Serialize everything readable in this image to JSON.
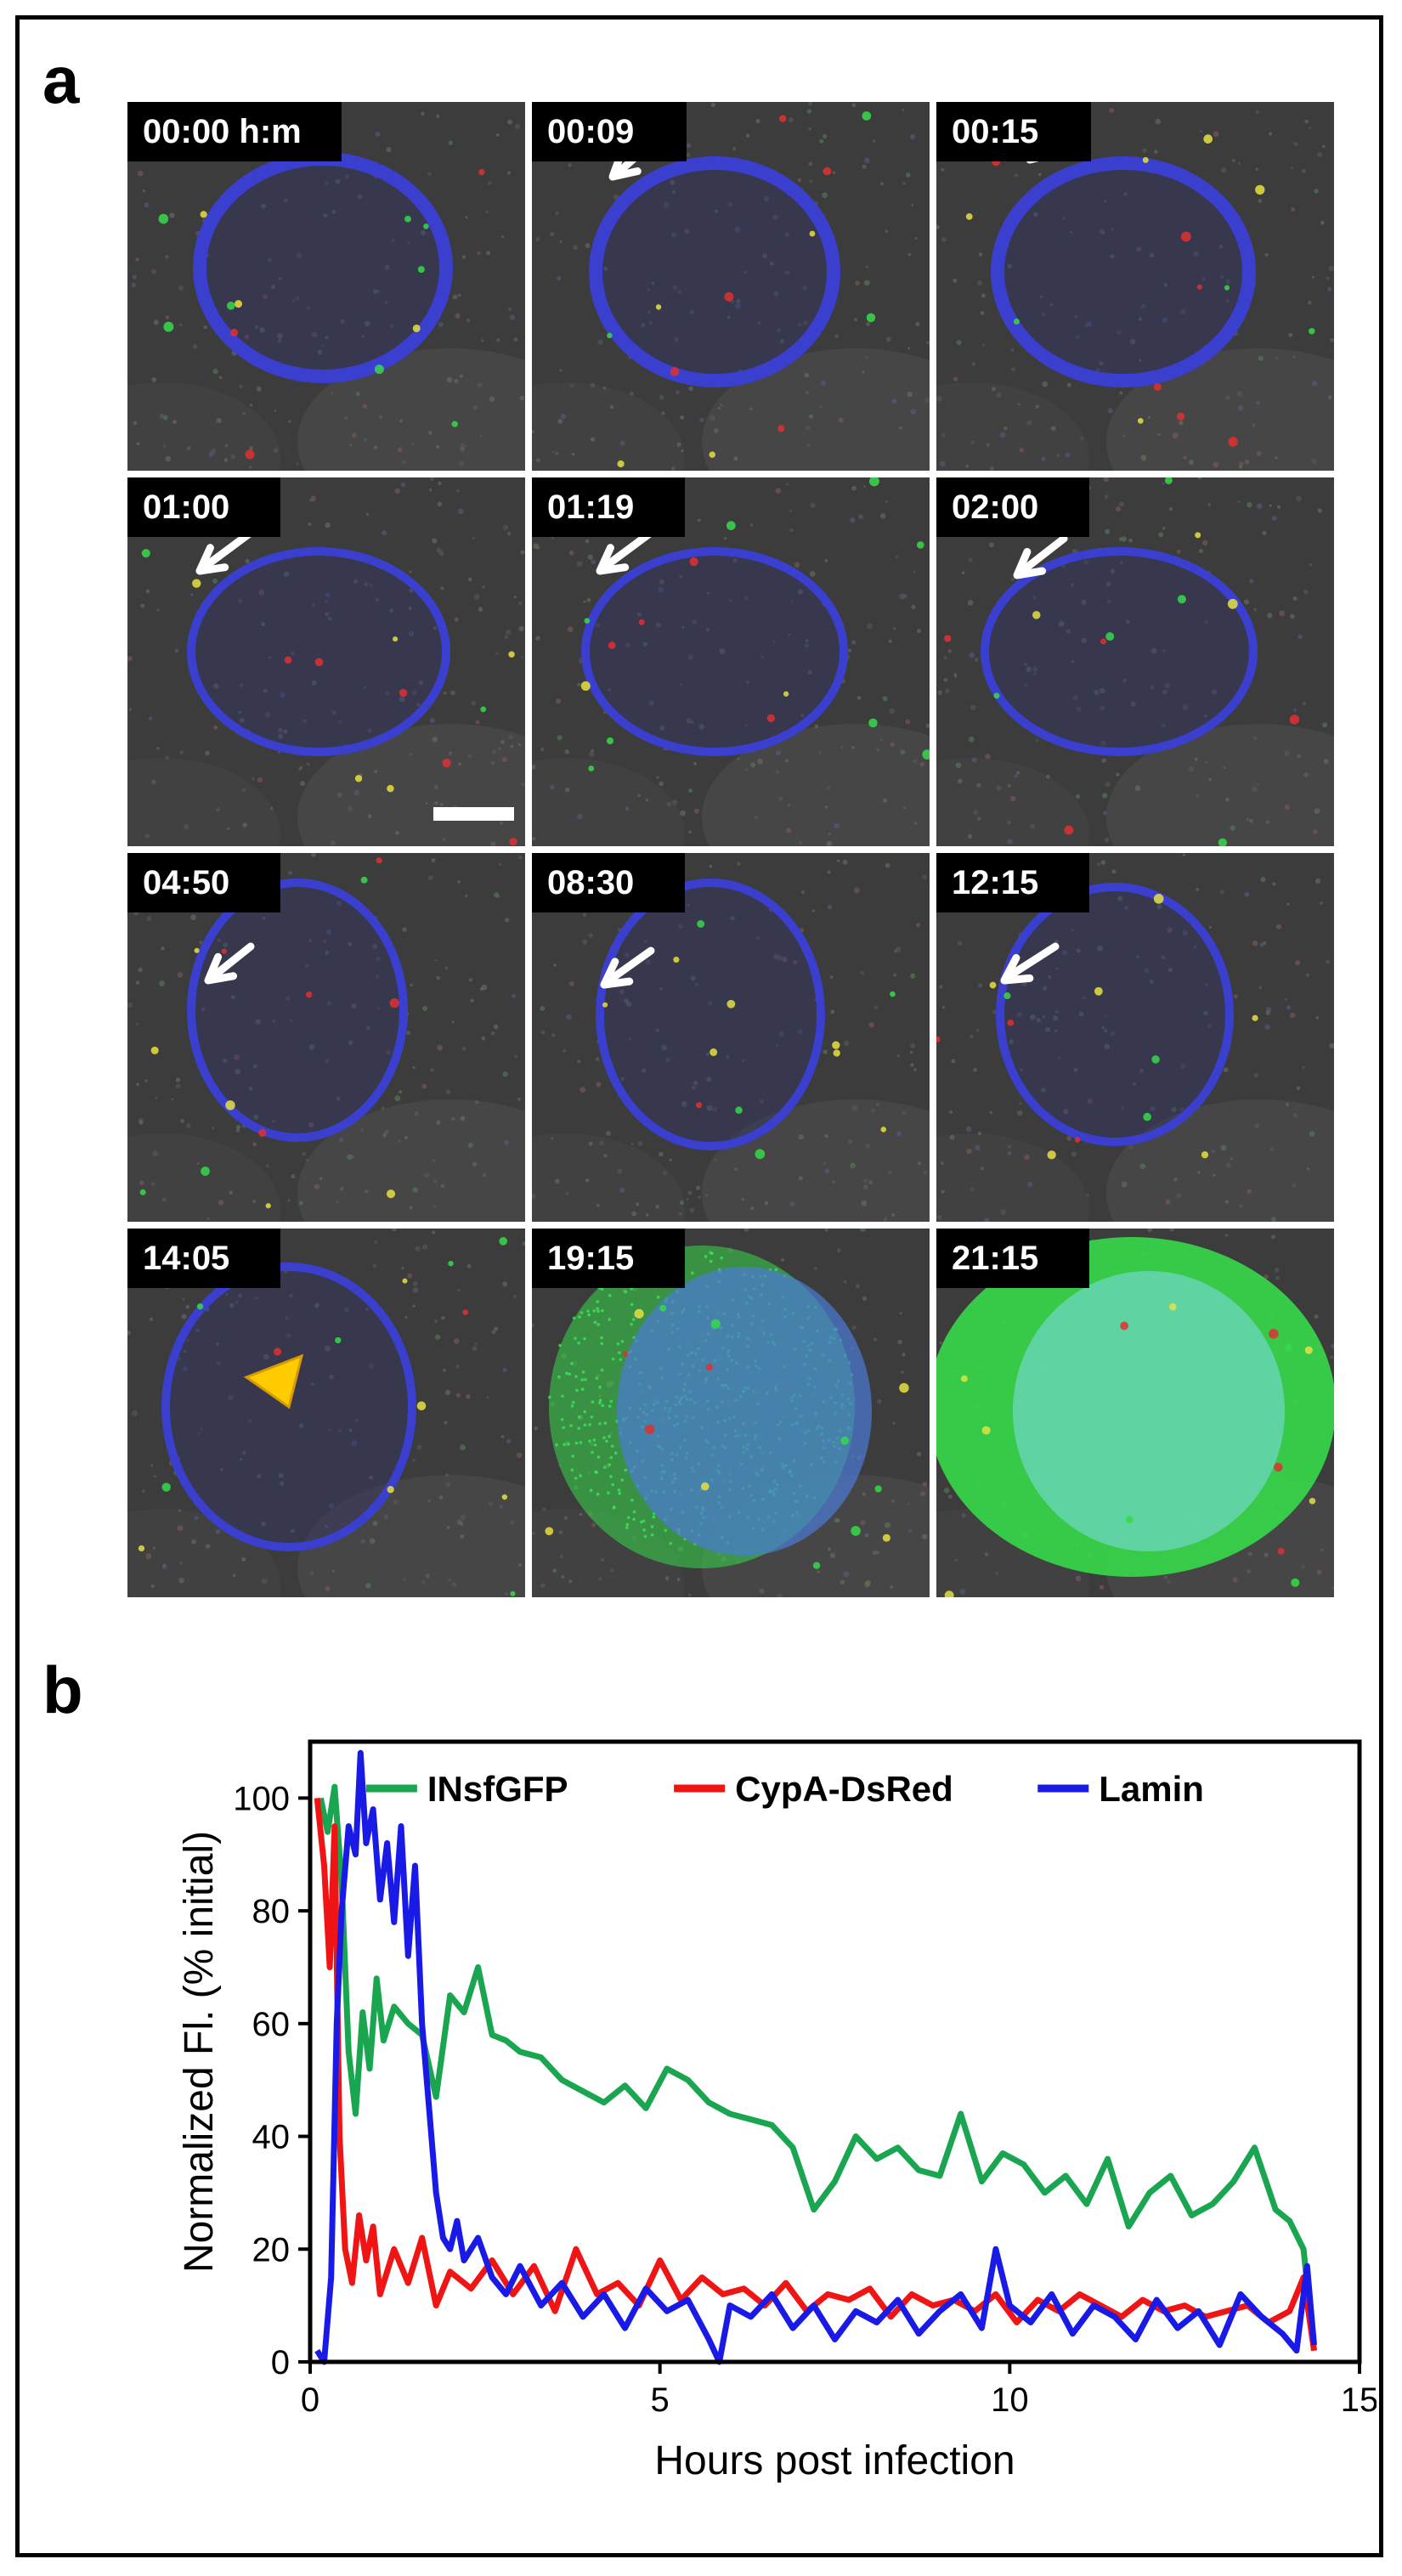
{
  "figure": {
    "panel_a_label": "a",
    "panel_b_label": "b"
  },
  "micrographs": {
    "time_labels": [
      "00:00 h:m",
      "00:09",
      "00:15",
      "01:00",
      "01:19",
      "02:00",
      "04:50",
      "08:30",
      "12:15",
      "14:05",
      "19:15",
      "21:15"
    ],
    "colors": {
      "nucleus_blue": "#3a3fd6",
      "gfp_green": "#36d94a",
      "marker_yellow": "#ffcc00",
      "arrow_white": "#ffffff",
      "background_gray": "#3c3c3c"
    }
  },
  "chart_data": {
    "type": "line",
    "xlabel": "Hours post infection",
    "ylabel": "Normalized Fl. (% initial)",
    "xlim": [
      0,
      15
    ],
    "ylim": [
      0,
      110
    ],
    "xticks": [
      "0",
      "5",
      "10",
      "15"
    ],
    "yticks": [
      "0",
      "20",
      "40",
      "60",
      "80",
      "100"
    ],
    "legend_position": "top",
    "series": [
      {
        "name": "INsfGFP",
        "color": "#1aa650",
        "x": [
          0.15,
          0.25,
          0.35,
          0.45,
          0.55,
          0.65,
          0.75,
          0.85,
          0.95,
          1.05,
          1.2,
          1.4,
          1.6,
          1.8,
          2.0,
          2.2,
          2.4,
          2.6,
          2.8,
          3.0,
          3.3,
          3.6,
          3.9,
          4.2,
          4.5,
          4.8,
          5.1,
          5.4,
          5.7,
          6.0,
          6.3,
          6.6,
          6.9,
          7.2,
          7.5,
          7.8,
          8.1,
          8.4,
          8.7,
          9.0,
          9.3,
          9.6,
          9.9,
          10.2,
          10.5,
          10.8,
          11.1,
          11.4,
          11.7,
          12.0,
          12.3,
          12.6,
          12.9,
          13.2,
          13.5,
          13.8,
          14.0,
          14.2,
          14.35
        ],
        "y": [
          100,
          94,
          102,
          85,
          55,
          44,
          62,
          52,
          68,
          57,
          63,
          60,
          58,
          47,
          65,
          62,
          70,
          58,
          57,
          55,
          54,
          50,
          48,
          46,
          49,
          45,
          52,
          50,
          46,
          44,
          43,
          42,
          38,
          27,
          32,
          40,
          36,
          38,
          34,
          33,
          44,
          32,
          37,
          35,
          30,
          33,
          28,
          36,
          24,
          30,
          33,
          26,
          28,
          32,
          38,
          27,
          25,
          20,
          2
        ]
      },
      {
        "name": "CypA-DsRed",
        "color": "#f01515",
        "x": [
          0.1,
          0.2,
          0.28,
          0.35,
          0.42,
          0.5,
          0.6,
          0.7,
          0.8,
          0.9,
          1.0,
          1.2,
          1.4,
          1.6,
          1.8,
          2.0,
          2.3,
          2.6,
          2.9,
          3.2,
          3.5,
          3.8,
          4.1,
          4.4,
          4.7,
          5.0,
          5.3,
          5.6,
          5.9,
          6.2,
          6.5,
          6.8,
          7.1,
          7.4,
          7.7,
          8.0,
          8.3,
          8.6,
          8.9,
          9.2,
          9.5,
          9.8,
          10.1,
          10.4,
          10.7,
          11.0,
          11.3,
          11.6,
          11.9,
          12.2,
          12.5,
          12.8,
          13.1,
          13.4,
          13.7,
          14.0,
          14.2,
          14.35
        ],
        "y": [
          100,
          88,
          70,
          95,
          40,
          20,
          14,
          26,
          18,
          24,
          12,
          20,
          14,
          22,
          10,
          16,
          13,
          18,
          12,
          17,
          9,
          20,
          12,
          14,
          10,
          18,
          11,
          15,
          12,
          13,
          10,
          14,
          9,
          12,
          11,
          13,
          8,
          12,
          10,
          11,
          9,
          12,
          7,
          11,
          9,
          12,
          10,
          8,
          11,
          9,
          10,
          8,
          9,
          10,
          7,
          9,
          15,
          2
        ]
      },
      {
        "name": "Lamin",
        "color": "#1a1ae6",
        "x": [
          0.1,
          0.2,
          0.3,
          0.38,
          0.45,
          0.55,
          0.65,
          0.72,
          0.8,
          0.9,
          1.0,
          1.1,
          1.2,
          1.3,
          1.4,
          1.5,
          1.6,
          1.7,
          1.8,
          1.9,
          2.0,
          2.1,
          2.2,
          2.4,
          2.6,
          2.8,
          3.0,
          3.3,
          3.6,
          3.9,
          4.2,
          4.5,
          4.8,
          5.1,
          5.4,
          5.7,
          5.85,
          6.0,
          6.3,
          6.6,
          6.9,
          7.2,
          7.5,
          7.8,
          8.1,
          8.4,
          8.7,
          9.0,
          9.3,
          9.6,
          9.8,
          10.0,
          10.3,
          10.6,
          10.9,
          11.2,
          11.5,
          11.8,
          12.1,
          12.4,
          12.7,
          13.0,
          13.3,
          13.6,
          13.9,
          14.1,
          14.25,
          14.35
        ],
        "y": [
          2,
          0,
          15,
          60,
          80,
          95,
          90,
          108,
          92,
          98,
          82,
          92,
          78,
          95,
          72,
          88,
          60,
          45,
          30,
          22,
          20,
          25,
          18,
          22,
          15,
          12,
          17,
          10,
          14,
          8,
          12,
          6,
          13,
          9,
          11,
          4,
          0,
          10,
          8,
          12,
          6,
          10,
          4,
          9,
          7,
          11,
          5,
          9,
          12,
          6,
          20,
          10,
          7,
          12,
          5,
          10,
          8,
          4,
          11,
          6,
          9,
          3,
          12,
          8,
          5,
          2,
          17,
          3
        ]
      }
    ]
  }
}
